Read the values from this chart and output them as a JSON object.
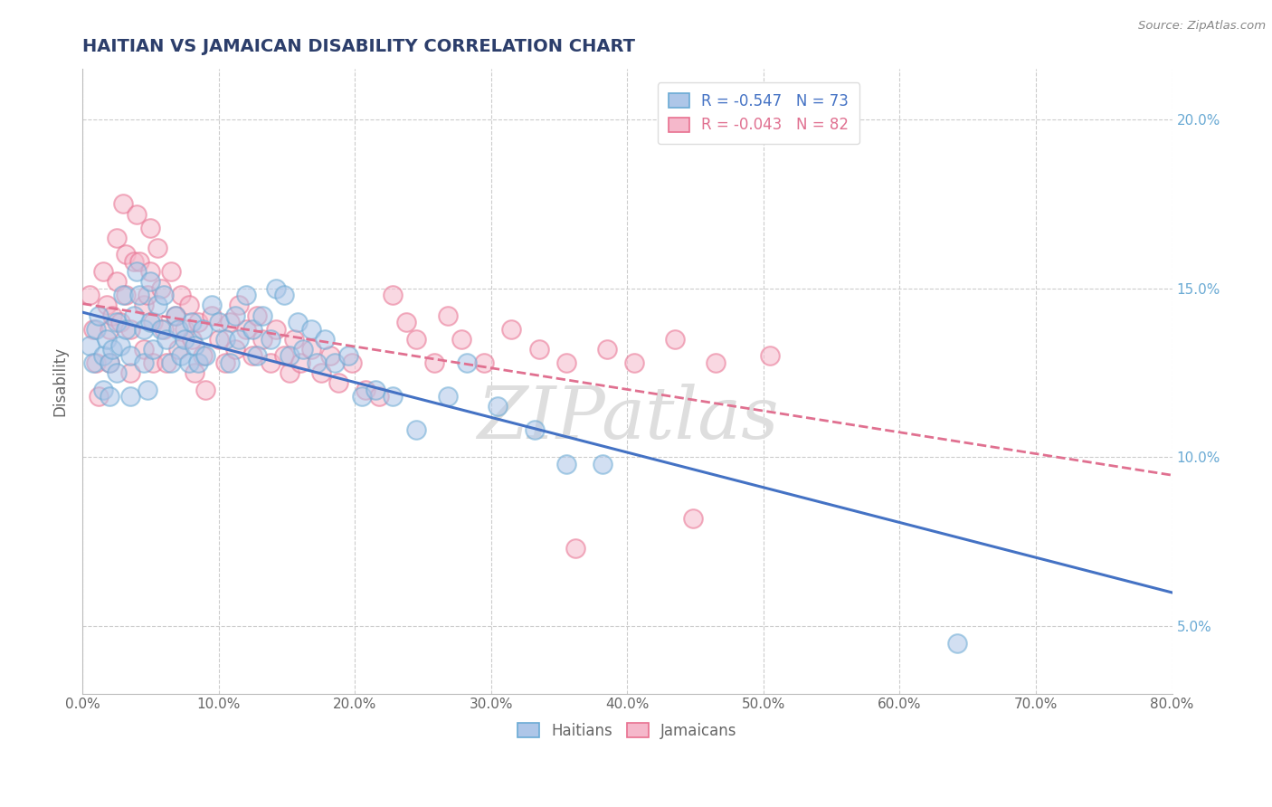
{
  "title": "HAITIAN VS JAMAICAN DISABILITY CORRELATION CHART",
  "title_color": "#2c3e6b",
  "source_text": "Source: ZipAtlas.com",
  "ylabel": "Disability",
  "xmin": 0.0,
  "xmax": 0.8,
  "ymin": 0.03,
  "ymax": 0.215,
  "xticks": [
    0.0,
    0.1,
    0.2,
    0.3,
    0.4,
    0.5,
    0.6,
    0.7,
    0.8
  ],
  "xticklabels": [
    "0.0%",
    "10.0%",
    "20.0%",
    "30.0%",
    "40.0%",
    "50.0%",
    "60.0%",
    "70.0%",
    "80.0%"
  ],
  "yticks": [
    0.05,
    0.1,
    0.15,
    0.2
  ],
  "yticklabels": [
    "5.0%",
    "10.0%",
    "15.0%",
    "20.0%"
  ],
  "haitian_fill": "#aec6e8",
  "haitian_edge": "#6aaad4",
  "jamaican_fill": "#f5b8cb",
  "jamaican_edge": "#e87090",
  "haitian_line_color": "#4472c4",
  "jamaican_line_color": "#e07090",
  "haitian_R": -0.547,
  "haitian_N": 73,
  "jamaican_R": -0.043,
  "jamaican_N": 82,
  "watermark": "ZIPatlas",
  "background_color": "#ffffff",
  "grid_color": "#cccccc",
  "right_ytick_color": "#6aaad4",
  "haitian_scatter": [
    [
      0.005,
      0.133
    ],
    [
      0.008,
      0.128
    ],
    [
      0.01,
      0.138
    ],
    [
      0.012,
      0.142
    ],
    [
      0.015,
      0.12
    ],
    [
      0.015,
      0.13
    ],
    [
      0.018,
      0.135
    ],
    [
      0.02,
      0.128
    ],
    [
      0.02,
      0.118
    ],
    [
      0.022,
      0.132
    ],
    [
      0.025,
      0.14
    ],
    [
      0.025,
      0.125
    ],
    [
      0.028,
      0.133
    ],
    [
      0.03,
      0.148
    ],
    [
      0.032,
      0.138
    ],
    [
      0.035,
      0.13
    ],
    [
      0.035,
      0.118
    ],
    [
      0.038,
      0.142
    ],
    [
      0.04,
      0.155
    ],
    [
      0.042,
      0.148
    ],
    [
      0.045,
      0.138
    ],
    [
      0.045,
      0.128
    ],
    [
      0.048,
      0.12
    ],
    [
      0.05,
      0.152
    ],
    [
      0.05,
      0.14
    ],
    [
      0.052,
      0.132
    ],
    [
      0.055,
      0.145
    ],
    [
      0.058,
      0.138
    ],
    [
      0.06,
      0.148
    ],
    [
      0.062,
      0.135
    ],
    [
      0.065,
      0.128
    ],
    [
      0.068,
      0.142
    ],
    [
      0.07,
      0.138
    ],
    [
      0.072,
      0.13
    ],
    [
      0.075,
      0.135
    ],
    [
      0.078,
      0.128
    ],
    [
      0.08,
      0.14
    ],
    [
      0.082,
      0.133
    ],
    [
      0.085,
      0.128
    ],
    [
      0.088,
      0.138
    ],
    [
      0.09,
      0.13
    ],
    [
      0.095,
      0.145
    ],
    [
      0.1,
      0.14
    ],
    [
      0.105,
      0.135
    ],
    [
      0.108,
      0.128
    ],
    [
      0.112,
      0.142
    ],
    [
      0.115,
      0.135
    ],
    [
      0.12,
      0.148
    ],
    [
      0.125,
      0.138
    ],
    [
      0.128,
      0.13
    ],
    [
      0.132,
      0.142
    ],
    [
      0.138,
      0.135
    ],
    [
      0.142,
      0.15
    ],
    [
      0.148,
      0.148
    ],
    [
      0.152,
      0.13
    ],
    [
      0.158,
      0.14
    ],
    [
      0.162,
      0.132
    ],
    [
      0.168,
      0.138
    ],
    [
      0.172,
      0.128
    ],
    [
      0.178,
      0.135
    ],
    [
      0.185,
      0.128
    ],
    [
      0.195,
      0.13
    ],
    [
      0.205,
      0.118
    ],
    [
      0.215,
      0.12
    ],
    [
      0.228,
      0.118
    ],
    [
      0.245,
      0.108
    ],
    [
      0.268,
      0.118
    ],
    [
      0.282,
      0.128
    ],
    [
      0.305,
      0.115
    ],
    [
      0.332,
      0.108
    ],
    [
      0.355,
      0.098
    ],
    [
      0.382,
      0.098
    ],
    [
      0.642,
      0.045
    ]
  ],
  "jamaican_scatter": [
    [
      0.005,
      0.148
    ],
    [
      0.008,
      0.138
    ],
    [
      0.01,
      0.128
    ],
    [
      0.012,
      0.118
    ],
    [
      0.015,
      0.155
    ],
    [
      0.018,
      0.145
    ],
    [
      0.02,
      0.138
    ],
    [
      0.02,
      0.128
    ],
    [
      0.022,
      0.142
    ],
    [
      0.025,
      0.165
    ],
    [
      0.025,
      0.152
    ],
    [
      0.028,
      0.14
    ],
    [
      0.03,
      0.175
    ],
    [
      0.032,
      0.16
    ],
    [
      0.032,
      0.148
    ],
    [
      0.035,
      0.138
    ],
    [
      0.035,
      0.125
    ],
    [
      0.038,
      0.158
    ],
    [
      0.04,
      0.172
    ],
    [
      0.042,
      0.158
    ],
    [
      0.045,
      0.145
    ],
    [
      0.045,
      0.132
    ],
    [
      0.048,
      0.148
    ],
    [
      0.05,
      0.168
    ],
    [
      0.05,
      0.155
    ],
    [
      0.052,
      0.14
    ],
    [
      0.052,
      0.128
    ],
    [
      0.055,
      0.162
    ],
    [
      0.058,
      0.15
    ],
    [
      0.06,
      0.138
    ],
    [
      0.062,
      0.128
    ],
    [
      0.065,
      0.155
    ],
    [
      0.068,
      0.142
    ],
    [
      0.07,
      0.132
    ],
    [
      0.072,
      0.148
    ],
    [
      0.075,
      0.138
    ],
    [
      0.078,
      0.145
    ],
    [
      0.08,
      0.135
    ],
    [
      0.082,
      0.125
    ],
    [
      0.085,
      0.14
    ],
    [
      0.088,
      0.13
    ],
    [
      0.09,
      0.12
    ],
    [
      0.095,
      0.142
    ],
    [
      0.1,
      0.135
    ],
    [
      0.105,
      0.128
    ],
    [
      0.108,
      0.14
    ],
    [
      0.112,
      0.132
    ],
    [
      0.115,
      0.145
    ],
    [
      0.12,
      0.138
    ],
    [
      0.125,
      0.13
    ],
    [
      0.128,
      0.142
    ],
    [
      0.132,
      0.135
    ],
    [
      0.138,
      0.128
    ],
    [
      0.142,
      0.138
    ],
    [
      0.148,
      0.13
    ],
    [
      0.152,
      0.125
    ],
    [
      0.155,
      0.135
    ],
    [
      0.16,
      0.128
    ],
    [
      0.168,
      0.132
    ],
    [
      0.175,
      0.125
    ],
    [
      0.182,
      0.13
    ],
    [
      0.188,
      0.122
    ],
    [
      0.198,
      0.128
    ],
    [
      0.208,
      0.12
    ],
    [
      0.218,
      0.118
    ],
    [
      0.228,
      0.148
    ],
    [
      0.238,
      0.14
    ],
    [
      0.245,
      0.135
    ],
    [
      0.258,
      0.128
    ],
    [
      0.268,
      0.142
    ],
    [
      0.278,
      0.135
    ],
    [
      0.295,
      0.128
    ],
    [
      0.315,
      0.138
    ],
    [
      0.335,
      0.132
    ],
    [
      0.355,
      0.128
    ],
    [
      0.385,
      0.132
    ],
    [
      0.405,
      0.128
    ],
    [
      0.435,
      0.135
    ],
    [
      0.465,
      0.128
    ],
    [
      0.505,
      0.13
    ],
    [
      0.448,
      0.082
    ],
    [
      0.362,
      0.073
    ]
  ]
}
